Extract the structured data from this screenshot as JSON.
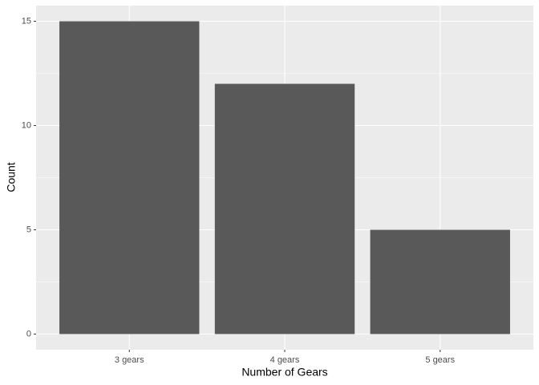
{
  "chart_data": {
    "type": "bar",
    "x_label": "Number of Gears",
    "y_label": "Count",
    "categories": [
      "3 gears",
      "4 gears",
      "5 gears"
    ],
    "values": [
      15,
      12,
      5
    ],
    "color": "#595959",
    "ylim": [
      -0.75,
      15.75
    ],
    "yticks": [
      0,
      5,
      10,
      15
    ],
    "minor_yticks": [
      2.5,
      7.5,
      12.5
    ],
    "grid": true
  }
}
